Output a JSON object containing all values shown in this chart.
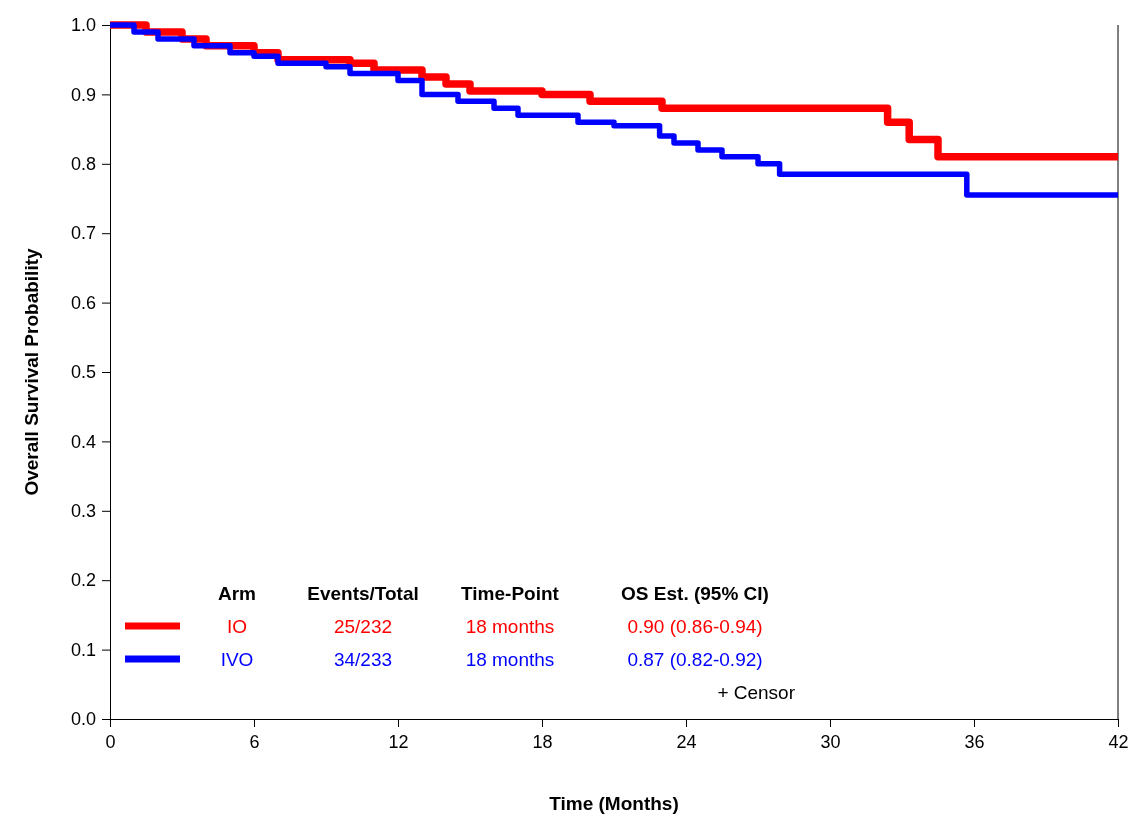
{
  "chart_data": {
    "type": "step",
    "xlabel": "Time (Months)",
    "ylabel": "Overall Survival Probability",
    "xlim": [
      0,
      42
    ],
    "xticks": [
      0,
      6,
      12,
      18,
      24,
      30,
      36,
      42
    ],
    "ylim": [
      0,
      1
    ],
    "yticks": [
      {
        "value": 0,
        "label": "0.0"
      },
      0.1,
      0.2,
      0.3,
      0.4,
      0.5,
      0.6,
      0.7,
      0.8,
      0.9,
      {
        "value": 1,
        "label": "1.0"
      }
    ],
    "legend": "bottom left",
    "marker": "none",
    "line_style": "solid",
    "grid": false,
    "annotations": [
      "Arm",
      "Events/Total",
      "Time-Point",
      "OS Est. (95% CI)",
      "25/232",
      "18 months",
      "0.90 (0.86-0.94)",
      "34/233",
      "18 months",
      "0.87 (0.82-0.92)",
      "+ Censor"
    ],
    "series": [
      {
        "name": "IO",
        "color": "#ff0000",
        "x": [
          0,
          1.5,
          3,
          4,
          6,
          7,
          10,
          11,
          13,
          14,
          15,
          18,
          20,
          23,
          32.4,
          33.3,
          34.5,
          42
        ],
        "values": [
          1,
          0.99,
          0.98,
          0.97,
          0.96,
          0.95,
          0.945,
          0.935,
          0.925,
          0.915,
          0.905,
          0.9,
          0.89,
          0.88,
          0.86,
          0.835,
          0.81,
          0.81
        ]
      },
      {
        "name": "IVO",
        "color": "#0000ff",
        "x": [
          0,
          1,
          2,
          3.5,
          5,
          6,
          7,
          9,
          10,
          12,
          13,
          14.5,
          16,
          17,
          19.5,
          21,
          22.9,
          23.5,
          24.5,
          25.5,
          27,
          27.9,
          35.7,
          42
        ],
        "values": [
          1,
          0.99,
          0.98,
          0.97,
          0.96,
          0.955,
          0.945,
          0.94,
          0.93,
          0.92,
          0.9,
          0.89,
          0.88,
          0.87,
          0.86,
          0.855,
          0.84,
          0.83,
          0.82,
          0.81,
          0.8,
          0.785,
          0.755,
          0.755
        ]
      }
    ]
  }
}
